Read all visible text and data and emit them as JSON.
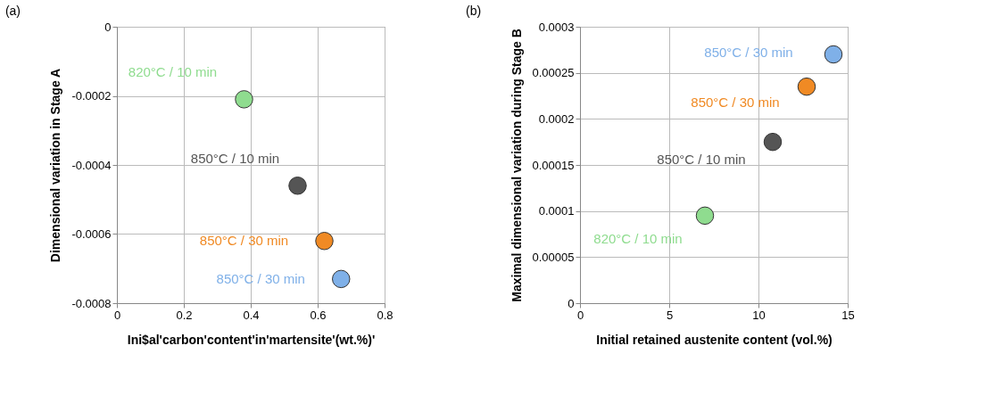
{
  "chart_data": [
    {
      "type": "scatter",
      "title": "(a)",
      "xlabel": "Ini$al'carbon'content'in'martensite'(wt.%)'",
      "ylabel": "Dimensional variation in Stage A",
      "xlim": [
        0,
        0.8
      ],
      "xticks": [
        0,
        0.2,
        0.4,
        0.6,
        0.8
      ],
      "ylim": [
        -0.0008,
        0
      ],
      "yticks": [
        -0.0008,
        -0.0006,
        -0.0004,
        -0.0002,
        0
      ],
      "grid": true,
      "marker": "circle",
      "series": [
        {
          "name": "820°C / 10 min",
          "color": "#8fdc8f",
          "x": [
            0.38
          ],
          "values": [
            -0.00021
          ]
        },
        {
          "name": "850°C / 10 min",
          "color": "#555555",
          "x": [
            0.54
          ],
          "values": [
            -0.00046
          ]
        },
        {
          "name": "850°C / 30 min",
          "color": "#f08a24",
          "x": [
            0.62
          ],
          "values": [
            -0.00062
          ]
        },
        {
          "name": "850°C / 30 min",
          "color": "#7fb0e8",
          "x": [
            0.67
          ],
          "values": [
            -0.00073
          ]
        }
      ]
    },
    {
      "type": "scatter",
      "title": "(b)",
      "xlabel": "Initial retained austenite content (vol.%)",
      "ylabel": "Maximal dimensional variation during Stage B",
      "xlim": [
        0,
        15
      ],
      "xticks": [
        0,
        5,
        10,
        15
      ],
      "ylim": [
        0,
        0.0003
      ],
      "yticks": [
        0,
        {
          "value": 5e-05,
          "label": "0.00005"
        },
        0.0001,
        0.00015,
        0.0002,
        0.00025,
        0.0003
      ],
      "grid": true,
      "marker": "circle",
      "series": [
        {
          "name": "850°C / 30 min",
          "color": "#7fb0e8",
          "x": [
            14.2
          ],
          "values": [
            0.00027
          ]
        },
        {
          "name": "850°C / 30 min",
          "color": "#f08a24",
          "x": [
            12.7
          ],
          "values": [
            0.000235
          ]
        },
        {
          "name": "850°C / 10 min",
          "color": "#555555",
          "x": [
            10.8
          ],
          "values": [
            0.000175
          ]
        },
        {
          "name": "820°C / 10 min",
          "color": "#8fdc8f",
          "x": [
            7.0
          ],
          "values": [
            9.5e-05
          ]
        }
      ]
    }
  ]
}
